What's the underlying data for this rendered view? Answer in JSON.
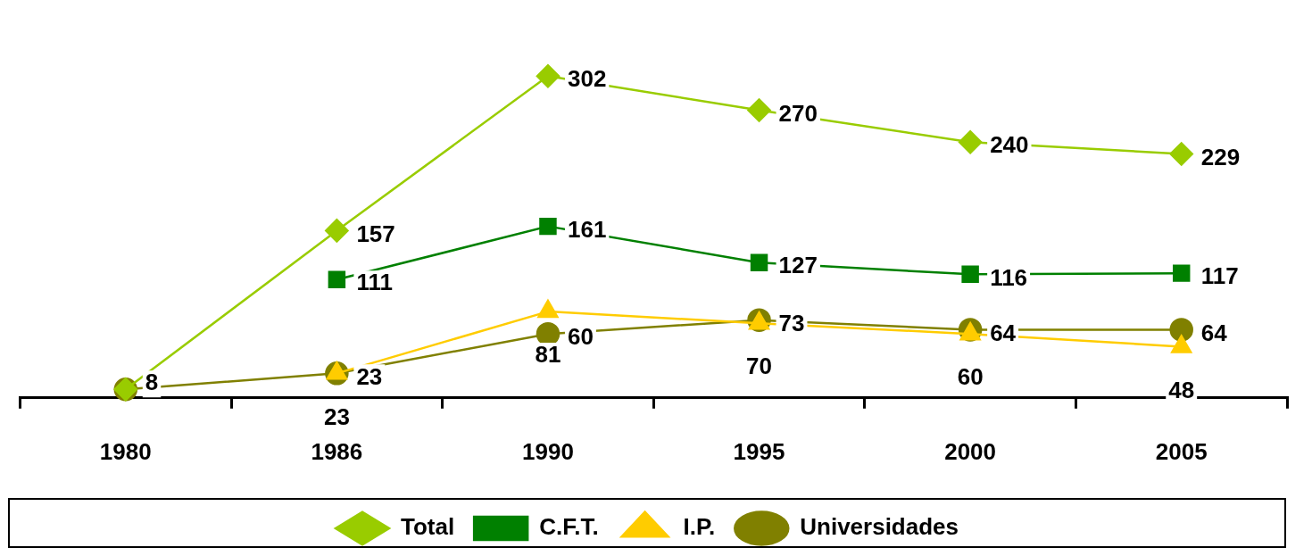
{
  "chart_data": {
    "type": "line",
    "categories": [
      "1980",
      "1986",
      "1990",
      "1995",
      "2000",
      "2005"
    ],
    "legend": "bottom",
    "grid": false,
    "series": [
      {
        "name": "Total",
        "color": "#99cc00",
        "marker": "diamond",
        "values": [
          8,
          157,
          302,
          270,
          240,
          229
        ],
        "value_labels": [
          null,
          "157",
          "302",
          "270",
          "240",
          "229"
        ]
      },
      {
        "name": "C.F.T.",
        "color": "#008000",
        "marker": "square",
        "values": [
          null,
          111,
          161,
          127,
          116,
          117
        ],
        "value_labels": [
          null,
          "111",
          "161",
          "127",
          "116",
          "117"
        ]
      },
      {
        "name": "I.P.",
        "color": "#ffcc00",
        "marker": "triangle",
        "values": [
          null,
          23,
          81,
          70,
          60,
          48
        ],
        "value_labels": [
          null,
          "23",
          "81",
          "70",
          "60",
          "48"
        ]
      },
      {
        "name": "Universidades",
        "color": "#808000",
        "marker": "circle",
        "values": [
          8,
          23,
          60,
          73,
          64,
          64
        ],
        "value_labels": [
          "8",
          "23",
          "60",
          "73",
          "64",
          "64"
        ]
      }
    ]
  }
}
